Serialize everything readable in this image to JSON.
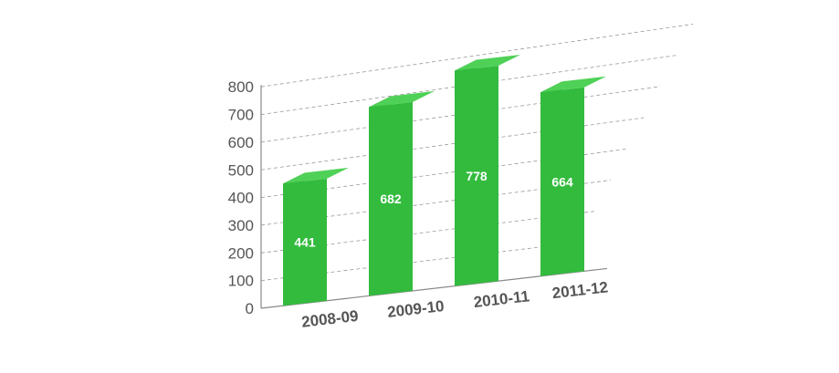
{
  "chart_data": {
    "type": "bar",
    "style": "3d",
    "categories": [
      "2008-09",
      "2009-10",
      "2010-11",
      "2011-12"
    ],
    "values": [
      441,
      682,
      778,
      664
    ],
    "ylim": [
      0,
      800
    ],
    "yticks": [
      "0",
      "100",
      "200",
      "300",
      "400",
      "500",
      "600",
      "700",
      "800"
    ],
    "grid": true,
    "data_labels": [
      "441",
      "682",
      "778",
      "664"
    ],
    "colors": {
      "bar_front": "#33bb3e",
      "bar_side": "#1f7f28",
      "bar_top": "#4fd157",
      "axis": "#888888",
      "grid": "#9a9a9a",
      "tick_text": "#555555",
      "label_text": "#ffffff"
    }
  }
}
